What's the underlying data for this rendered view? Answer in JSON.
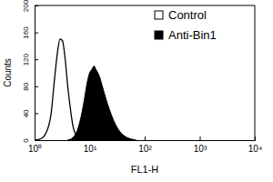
{
  "chart_data": {
    "type": "area",
    "x_label": "FL1-H",
    "y_label": "Counts",
    "log": "x",
    "legend": "top-right",
    "xlim": [
      1,
      10000
    ],
    "xticks": [
      {
        "value": 1,
        "label": "10⁰"
      },
      {
        "value": 10,
        "label": "10¹"
      },
      {
        "value": 100,
        "label": "10²"
      },
      {
        "value": 1000,
        "label": "10³"
      },
      {
        "value": 10000,
        "label": "10⁴"
      }
    ],
    "ylim": [
      0,
      200
    ],
    "yticks": [
      0,
      40,
      80,
      120,
      160,
      200
    ],
    "series": [
      {
        "name": "Control",
        "type": "line",
        "color": "#000000",
        "x": [
          1,
          1.3,
          1.6,
          2,
          2.3,
          2.6,
          2.9,
          3.2,
          3.6,
          4,
          4.5,
          5,
          5.6,
          6.3,
          7,
          8
        ],
        "values": [
          0,
          2,
          10,
          40,
          90,
          130,
          150,
          148,
          120,
          80,
          45,
          20,
          8,
          3,
          1,
          0
        ]
      },
      {
        "name": "Anti-Bin1",
        "type": "area",
        "color": "#000000",
        "x": [
          4,
          5,
          6,
          7,
          8,
          9,
          10,
          11,
          12,
          13,
          15,
          17,
          20,
          23,
          27,
          32,
          38,
          45,
          55,
          70
        ],
        "values": [
          0,
          4,
          15,
          35,
          60,
          85,
          100,
          105,
          110,
          105,
          95,
          80,
          60,
          45,
          30,
          18,
          10,
          5,
          2,
          0
        ]
      }
    ]
  }
}
